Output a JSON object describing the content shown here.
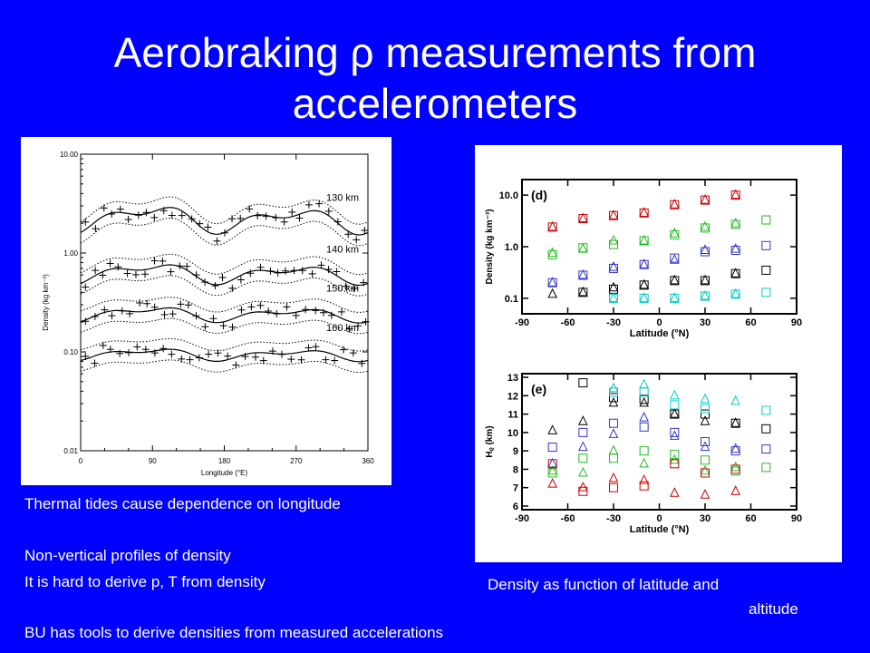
{
  "slide": {
    "title_line1": "Aerobraking ρ measurements from",
    "title_line2": "accelerometers",
    "notes": {
      "thermal": "Thermal tides cause dependence on longitude",
      "nonvertical": "Non-vertical profiles of density",
      "hard": "It is hard to derive p, T from density",
      "bu": "BU has tools to derive densities from measured accelerations",
      "caption_line1": "Density as function of latitude and",
      "caption_line2": "altitude"
    }
  },
  "chart_data": [
    {
      "type": "scatter",
      "xlabel": "Longitude (°E)",
      "ylabel": "Density (kg km⁻³)",
      "xlim": [
        0,
        360
      ],
      "ylim": [
        0.01,
        10
      ],
      "yscale": "log",
      "xticks": [
        "0",
        "90",
        "180",
        "270",
        "360"
      ],
      "yticks": [
        "0.01",
        "0.10",
        "1.00",
        "10.00"
      ],
      "series": [
        {
          "name": "130 km",
          "amp": 1.5,
          "mean": 2.2
        },
        {
          "name": "140 km",
          "amp": 1.35,
          "mean": 0.62
        },
        {
          "name": "150 km",
          "amp": 1.25,
          "mean": 0.24
        },
        {
          "name": "160 km",
          "amp": 1.2,
          "mean": 0.094
        }
      ]
    },
    {
      "type": "scatter",
      "panel_label": "(d)",
      "xlabel": "Latitude (°N)",
      "ylabel": "Density (kg km⁻³)",
      "xlim": [
        -90,
        90
      ],
      "ylim": [
        0.05,
        20
      ],
      "yscale": "log",
      "xticks": [
        "-90",
        "-60",
        "-30",
        "0",
        "30",
        "60",
        "90"
      ],
      "yticks": [
        "0.1",
        "1.0",
        "10.0"
      ],
      "points": [
        {
          "m": "tri",
          "c": "#cc0000",
          "x": -70,
          "y": 2.4
        },
        {
          "m": "sq",
          "c": "#cc0000",
          "x": -70,
          "y": 2.4
        },
        {
          "m": "tri",
          "c": "#cc0000",
          "x": -50,
          "y": 3.5
        },
        {
          "m": "sq",
          "c": "#cc0000",
          "x": -50,
          "y": 3.5
        },
        {
          "m": "tri",
          "c": "#cc0000",
          "x": -30,
          "y": 4.0
        },
        {
          "m": "sq",
          "c": "#cc0000",
          "x": -30,
          "y": 4.0
        },
        {
          "m": "tri",
          "c": "#cc0000",
          "x": -10,
          "y": 4.5
        },
        {
          "m": "sq",
          "c": "#cc0000",
          "x": -10,
          "y": 4.5
        },
        {
          "m": "tri",
          "c": "#cc0000",
          "x": 10,
          "y": 6.5
        },
        {
          "m": "sq",
          "c": "#cc0000",
          "x": 10,
          "y": 6.5
        },
        {
          "m": "tri",
          "c": "#cc0000",
          "x": 30,
          "y": 8.0
        },
        {
          "m": "sq",
          "c": "#cc0000",
          "x": 30,
          "y": 8.0
        },
        {
          "m": "tri",
          "c": "#cc0000",
          "x": 50,
          "y": 10
        },
        {
          "m": "sq",
          "c": "#cc0000",
          "x": 50,
          "y": 10
        },
        {
          "m": "tri",
          "c": "#22bb22",
          "x": -70,
          "y": 0.75
        },
        {
          "m": "sq",
          "c": "#22bb22",
          "x": -70,
          "y": 0.7
        },
        {
          "m": "tri",
          "c": "#22bb22",
          "x": -50,
          "y": 0.9
        },
        {
          "m": "sq",
          "c": "#22bb22",
          "x": -50,
          "y": 0.95
        },
        {
          "m": "tri",
          "c": "#22bb22",
          "x": -30,
          "y": 1.3
        },
        {
          "m": "sq",
          "c": "#22bb22",
          "x": -30,
          "y": 1.1
        },
        {
          "m": "tri",
          "c": "#22bb22",
          "x": -10,
          "y": 1.3
        },
        {
          "m": "sq",
          "c": "#22bb22",
          "x": -10,
          "y": 1.3
        },
        {
          "m": "tri",
          "c": "#22bb22",
          "x": 10,
          "y": 1.8
        },
        {
          "m": "sq",
          "c": "#22bb22",
          "x": 10,
          "y": 1.7
        },
        {
          "m": "tri",
          "c": "#22bb22",
          "x": 30,
          "y": 2.4
        },
        {
          "m": "sq",
          "c": "#22bb22",
          "x": 30,
          "y": 2.3
        },
        {
          "m": "tri",
          "c": "#22bb22",
          "x": 50,
          "y": 2.8
        },
        {
          "m": "sq",
          "c": "#22bb22",
          "x": 50,
          "y": 2.7
        },
        {
          "m": "sq",
          "c": "#22bb22",
          "x": 70,
          "y": 3.3
        },
        {
          "m": "tri",
          "c": "#3333cc",
          "x": -70,
          "y": 0.2
        },
        {
          "m": "sq",
          "c": "#3333cc",
          "x": -70,
          "y": 0.2
        },
        {
          "m": "tri",
          "c": "#3333cc",
          "x": -50,
          "y": 0.28
        },
        {
          "m": "sq",
          "c": "#3333cc",
          "x": -50,
          "y": 0.28
        },
        {
          "m": "tri",
          "c": "#3333cc",
          "x": -30,
          "y": 0.4
        },
        {
          "m": "sq",
          "c": "#3333cc",
          "x": -30,
          "y": 0.38
        },
        {
          "m": "tri",
          "c": "#3333cc",
          "x": -10,
          "y": 0.45
        },
        {
          "m": "sq",
          "c": "#3333cc",
          "x": -10,
          "y": 0.45
        },
        {
          "m": "tri",
          "c": "#3333cc",
          "x": 10,
          "y": 0.55
        },
        {
          "m": "sq",
          "c": "#3333cc",
          "x": 10,
          "y": 0.6
        },
        {
          "m": "tri",
          "c": "#3333cc",
          "x": 30,
          "y": 0.85
        },
        {
          "m": "sq",
          "c": "#3333cc",
          "x": 30,
          "y": 0.8
        },
        {
          "m": "tri",
          "c": "#3333cc",
          "x": 50,
          "y": 0.9
        },
        {
          "m": "sq",
          "c": "#3333cc",
          "x": 50,
          "y": 0.85
        },
        {
          "m": "sq",
          "c": "#3333cc",
          "x": 70,
          "y": 1.05
        },
        {
          "m": "tri",
          "c": "#000000",
          "x": -70,
          "y": 0.12
        },
        {
          "m": "tri",
          "c": "#000000",
          "x": -50,
          "y": 0.13
        },
        {
          "m": "sq",
          "c": "#000000",
          "x": -50,
          "y": 0.13
        },
        {
          "m": "tri",
          "c": "#000000",
          "x": -30,
          "y": 0.16
        },
        {
          "m": "sq",
          "c": "#000000",
          "x": -30,
          "y": 0.15
        },
        {
          "m": "tri",
          "c": "#000000",
          "x": -10,
          "y": 0.18
        },
        {
          "m": "sq",
          "c": "#000000",
          "x": -10,
          "y": 0.18
        },
        {
          "m": "tri",
          "c": "#000000",
          "x": 10,
          "y": 0.22
        },
        {
          "m": "sq",
          "c": "#000000",
          "x": 10,
          "y": 0.22
        },
        {
          "m": "tri",
          "c": "#000000",
          "x": 30,
          "y": 0.22
        },
        {
          "m": "sq",
          "c": "#000000",
          "x": 30,
          "y": 0.22
        },
        {
          "m": "tri",
          "c": "#000000",
          "x": 50,
          "y": 0.3
        },
        {
          "m": "sq",
          "c": "#000000",
          "x": 50,
          "y": 0.3
        },
        {
          "m": "sq",
          "c": "#000000",
          "x": 70,
          "y": 0.35
        },
        {
          "m": "tri",
          "c": "#00cccc",
          "x": -30,
          "y": 0.1
        },
        {
          "m": "sq",
          "c": "#00cccc",
          "x": -30,
          "y": 0.1
        },
        {
          "m": "tri",
          "c": "#00cccc",
          "x": -10,
          "y": 0.1
        },
        {
          "m": "sq",
          "c": "#00cccc",
          "x": -10,
          "y": 0.1
        },
        {
          "m": "tri",
          "c": "#00cccc",
          "x": 10,
          "y": 0.1
        },
        {
          "m": "sq",
          "c": "#00cccc",
          "x": 10,
          "y": 0.1
        },
        {
          "m": "tri",
          "c": "#00cccc",
          "x": 30,
          "y": 0.11
        },
        {
          "m": "sq",
          "c": "#00cccc",
          "x": 30,
          "y": 0.11
        },
        {
          "m": "tri",
          "c": "#00cccc",
          "x": 50,
          "y": 0.12
        },
        {
          "m": "sq",
          "c": "#00cccc",
          "x": 50,
          "y": 0.12
        },
        {
          "m": "sq",
          "c": "#00cccc",
          "x": 70,
          "y": 0.13
        }
      ]
    },
    {
      "type": "scatter",
      "panel_label": "(e)",
      "xlabel": "Latitude (°N)",
      "ylabel": "Hᵨ (km)",
      "xlim": [
        -90,
        90
      ],
      "ylim": [
        5.8,
        13.2
      ],
      "xticks": [
        "-90",
        "-60",
        "-30",
        "0",
        "30",
        "60",
        "90"
      ],
      "yticks": [
        "6",
        "7",
        "8",
        "9",
        "10",
        "11",
        "12",
        "13"
      ],
      "points": [
        {
          "m": "tri",
          "c": "#000000",
          "x": -70,
          "y": 10.1
        },
        {
          "m": "tri",
          "c": "#000000",
          "x": -50,
          "y": 10.6
        },
        {
          "m": "tri",
          "c": "#000000",
          "x": -30,
          "y": 11.6
        },
        {
          "m": "tri",
          "c": "#000000",
          "x": -10,
          "y": 11.6
        },
        {
          "m": "tri",
          "c": "#000000",
          "x": 10,
          "y": 11.0
        },
        {
          "m": "tri",
          "c": "#000000",
          "x": 30,
          "y": 10.6
        },
        {
          "m": "tri",
          "c": "#000000",
          "x": 50,
          "y": 10.5
        },
        {
          "m": "sq",
          "c": "#000000",
          "x": -50,
          "y": 12.7
        },
        {
          "m": "sq",
          "c": "#000000",
          "x": -30,
          "y": 11.9
        },
        {
          "m": "sq",
          "c": "#000000",
          "x": -10,
          "y": 11.8
        },
        {
          "m": "sq",
          "c": "#000000",
          "x": 10,
          "y": 11.0
        },
        {
          "m": "sq",
          "c": "#000000",
          "x": 30,
          "y": 11.0
        },
        {
          "m": "sq",
          "c": "#000000",
          "x": 50,
          "y": 10.5
        },
        {
          "m": "sq",
          "c": "#000000",
          "x": 70,
          "y": 10.2
        },
        {
          "m": "tri",
          "c": "#00cccc",
          "x": -30,
          "y": 12.4
        },
        {
          "m": "tri",
          "c": "#00cccc",
          "x": -10,
          "y": 12.6
        },
        {
          "m": "tri",
          "c": "#00cccc",
          "x": 10,
          "y": 12.0
        },
        {
          "m": "tri",
          "c": "#00cccc",
          "x": 30,
          "y": 11.8
        },
        {
          "m": "tri",
          "c": "#00cccc",
          "x": 50,
          "y": 11.7
        },
        {
          "m": "sq",
          "c": "#00cccc",
          "x": -30,
          "y": 12.2
        },
        {
          "m": "sq",
          "c": "#00cccc",
          "x": -10,
          "y": 12.2
        },
        {
          "m": "sq",
          "c": "#00cccc",
          "x": 10,
          "y": 11.5
        },
        {
          "m": "sq",
          "c": "#00cccc",
          "x": 30,
          "y": 11.3
        },
        {
          "m": "sq",
          "c": "#00cccc",
          "x": 70,
          "y": 11.2
        },
        {
          "m": "tri",
          "c": "#3333cc",
          "x": -70,
          "y": 8.3
        },
        {
          "m": "tri",
          "c": "#3333cc",
          "x": -50,
          "y": 9.2
        },
        {
          "m": "tri",
          "c": "#3333cc",
          "x": -30,
          "y": 9.9
        },
        {
          "m": "tri",
          "c": "#3333cc",
          "x": -10,
          "y": 10.8
        },
        {
          "m": "tri",
          "c": "#3333cc",
          "x": 10,
          "y": 9.8
        },
        {
          "m": "tri",
          "c": "#3333cc",
          "x": 30,
          "y": 9.2
        },
        {
          "m": "tri",
          "c": "#3333cc",
          "x": 50,
          "y": 9.1
        },
        {
          "m": "sq",
          "c": "#3333cc",
          "x": -70,
          "y": 9.2
        },
        {
          "m": "sq",
          "c": "#3333cc",
          "x": -50,
          "y": 10.0
        },
        {
          "m": "sq",
          "c": "#3333cc",
          "x": -30,
          "y": 10.5
        },
        {
          "m": "sq",
          "c": "#3333cc",
          "x": -10,
          "y": 10.3
        },
        {
          "m": "sq",
          "c": "#3333cc",
          "x": 10,
          "y": 10.0
        },
        {
          "m": "sq",
          "c": "#3333cc",
          "x": 30,
          "y": 9.5
        },
        {
          "m": "sq",
          "c": "#3333cc",
          "x": 50,
          "y": 9.0
        },
        {
          "m": "sq",
          "c": "#3333cc",
          "x": 70,
          "y": 9.1
        },
        {
          "m": "tri",
          "c": "#22bb22",
          "x": -70,
          "y": 7.9
        },
        {
          "m": "tri",
          "c": "#22bb22",
          "x": -50,
          "y": 7.8
        },
        {
          "m": "tri",
          "c": "#22bb22",
          "x": -30,
          "y": 9.0
        },
        {
          "m": "tri",
          "c": "#22bb22",
          "x": -10,
          "y": 8.3
        },
        {
          "m": "tri",
          "c": "#22bb22",
          "x": 10,
          "y": 8.5
        },
        {
          "m": "tri",
          "c": "#22bb22",
          "x": 30,
          "y": 7.9
        },
        {
          "m": "tri",
          "c": "#22bb22",
          "x": 50,
          "y": 8.1
        },
        {
          "m": "sq",
          "c": "#22bb22",
          "x": -70,
          "y": 7.8
        },
        {
          "m": "sq",
          "c": "#22bb22",
          "x": -50,
          "y": 8.6
        },
        {
          "m": "sq",
          "c": "#22bb22",
          "x": -30,
          "y": 8.6
        },
        {
          "m": "sq",
          "c": "#22bb22",
          "x": -10,
          "y": 9.0
        },
        {
          "m": "sq",
          "c": "#22bb22",
          "x": 10,
          "y": 8.8
        },
        {
          "m": "sq",
          "c": "#22bb22",
          "x": 30,
          "y": 8.5
        },
        {
          "m": "sq",
          "c": "#22bb22",
          "x": 50,
          "y": 7.9
        },
        {
          "m": "sq",
          "c": "#22bb22",
          "x": 70,
          "y": 8.1
        },
        {
          "m": "tri",
          "c": "#cc0000",
          "x": -70,
          "y": 7.2
        },
        {
          "m": "tri",
          "c": "#cc0000",
          "x": -50,
          "y": 7.0
        },
        {
          "m": "tri",
          "c": "#cc0000",
          "x": -30,
          "y": 7.5
        },
        {
          "m": "tri",
          "c": "#cc0000",
          "x": -10,
          "y": 7.4
        },
        {
          "m": "tri",
          "c": "#cc0000",
          "x": 10,
          "y": 6.7
        },
        {
          "m": "tri",
          "c": "#cc0000",
          "x": 30,
          "y": 6.6
        },
        {
          "m": "tri",
          "c": "#cc0000",
          "x": 50,
          "y": 6.8
        },
        {
          "m": "sq",
          "c": "#cc0000",
          "x": -70,
          "y": 8.3
        },
        {
          "m": "sq",
          "c": "#cc0000",
          "x": -50,
          "y": 6.8
        },
        {
          "m": "sq",
          "c": "#cc0000",
          "x": -30,
          "y": 7.0
        },
        {
          "m": "sq",
          "c": "#cc0000",
          "x": -10,
          "y": 7.1
        },
        {
          "m": "sq",
          "c": "#cc0000",
          "x": 10,
          "y": 8.3
        },
        {
          "m": "sq",
          "c": "#cc0000",
          "x": 30,
          "y": 7.8
        },
        {
          "m": "sq",
          "c": "#cc0000",
          "x": 50,
          "y": 8.0
        }
      ]
    }
  ]
}
